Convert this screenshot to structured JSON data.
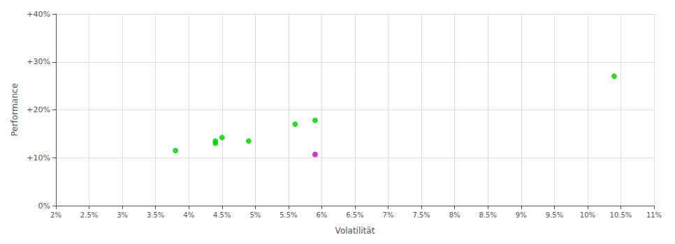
{
  "chart_data": {
    "type": "scatter",
    "xlabel": "Volatilität",
    "ylabel": "Performance",
    "xlim": [
      0.02,
      0.11
    ],
    "ylim": [
      0.0,
      0.4
    ],
    "xticks": [
      {
        "value": 0.02,
        "label": "2%"
      },
      {
        "value": 0.025,
        "label": "2.5%"
      },
      {
        "value": 0.03,
        "label": "3%"
      },
      {
        "value": 0.035,
        "label": "3.5%"
      },
      {
        "value": 0.04,
        "label": "4%"
      },
      {
        "value": 0.045,
        "label": "4.5%"
      },
      {
        "value": 0.05,
        "label": "5%"
      },
      {
        "value": 0.055,
        "label": "5.5%"
      },
      {
        "value": 0.06,
        "label": "6%"
      },
      {
        "value": 0.065,
        "label": "6.5%"
      },
      {
        "value": 0.07,
        "label": "7%"
      },
      {
        "value": 0.075,
        "label": "7.5%"
      },
      {
        "value": 0.08,
        "label": "8%"
      },
      {
        "value": 0.085,
        "label": "8.5%"
      },
      {
        "value": 0.09,
        "label": "9%"
      },
      {
        "value": 0.095,
        "label": "9.5%"
      },
      {
        "value": 0.1,
        "label": "10%"
      },
      {
        "value": 0.105,
        "label": "10.5%"
      },
      {
        "value": 0.11,
        "label": "11%"
      }
    ],
    "yticks": [
      {
        "value": 0.0,
        "label": "0%"
      },
      {
        "value": 0.1,
        "label": "+10%"
      },
      {
        "value": 0.2,
        "label": "+20%"
      },
      {
        "value": 0.3,
        "label": "+30%"
      },
      {
        "value": 0.4,
        "label": "+40%"
      }
    ],
    "grid": true,
    "series": [
      {
        "color": "#00cc00",
        "x": [
          0.038,
          0.044,
          0.045,
          0.044,
          0.049,
          0.056,
          0.059,
          0.104
        ],
        "values": [
          0.115,
          0.135,
          0.142,
          0.13,
          0.135,
          0.17,
          0.178,
          0.27
        ]
      },
      {
        "color": "#cc00cc",
        "x": [
          0.059
        ],
        "values": [
          0.107
        ]
      }
    ]
  }
}
